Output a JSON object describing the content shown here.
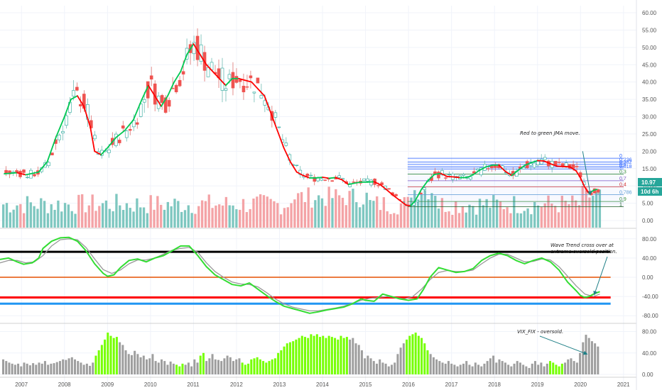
{
  "chart_data": [
    {
      "type": "candlestick",
      "panel": "price",
      "y_ticks": [
        "60.00",
        "55.00",
        "50.00",
        "45.00",
        "40.00",
        "35.00",
        "30.00",
        "25.00",
        "20.00",
        "15.00",
        "10.00",
        "5.00",
        "0.00"
      ],
      "ylim": [
        0,
        60
      ],
      "x_ticks": [
        "2007",
        "2008",
        "2009",
        "2010",
        "2011",
        "2012",
        "2013",
        "2014",
        "2015",
        "2016",
        "2017",
        "2018",
        "2019",
        "2020",
        "2021"
      ],
      "xlim": [
        2006.5,
        2021.3
      ],
      "last_price_label": "10.97",
      "countdown_label": "10d 6h",
      "annotation": "Red to green JMA move.",
      "fib_levels": [
        {
          "label": "0",
          "value": 18.0,
          "color": "#2962ff"
        },
        {
          "label": "0.236",
          "value": 16.9,
          "color": "#2962ff"
        },
        {
          "label": "0.382",
          "value": 16.2,
          "color": "#2962ff"
        },
        {
          "label": "0.5",
          "value": 15.5,
          "color": "#2962ff"
        },
        {
          "label": "0.618",
          "value": 14.9,
          "color": "#2962ff"
        },
        {
          "label": "0.3",
          "value": 13.4,
          "color": "#388e3c"
        },
        {
          "label": "0.7",
          "value": 11.5,
          "color": "#7e57c2"
        },
        {
          "label": "0.4",
          "value": 9.7,
          "color": "#d32f2f"
        },
        {
          "label": "0.786",
          "value": 7.5,
          "color": "#5c9bd6"
        },
        {
          "label": "0.9",
          "value": 5.5,
          "color": "#388e3c"
        },
        {
          "label": "1",
          "value": 4.0,
          "color": "#1b5e20"
        }
      ],
      "jma": [
        [
          2006.6,
          13.5
        ],
        [
          2006.9,
          13.8
        ],
        [
          2007.1,
          13.2
        ],
        [
          2007.4,
          14.0
        ],
        [
          2007.6,
          17.0
        ],
        [
          2007.8,
          24.0
        ],
        [
          2008.0,
          30.0
        ],
        [
          2008.15,
          35.0
        ],
        [
          2008.3,
          36.0
        ],
        [
          2008.45,
          33.0
        ],
        [
          2008.6,
          27.0
        ],
        [
          2008.7,
          20.0
        ],
        [
          2008.85,
          19.0
        ],
        [
          2009.0,
          21.0
        ],
        [
          2009.2,
          24.0
        ],
        [
          2009.4,
          26.0
        ],
        [
          2009.6,
          29.0
        ],
        [
          2009.8,
          35.0
        ],
        [
          2009.95,
          39.0
        ],
        [
          2010.1,
          36.0
        ],
        [
          2010.25,
          33.0
        ],
        [
          2010.4,
          36.0
        ],
        [
          2010.55,
          40.0
        ],
        [
          2010.7,
          43.0
        ],
        [
          2010.85,
          48.0
        ],
        [
          2011.0,
          51.0
        ],
        [
          2011.15,
          48.0
        ],
        [
          2011.3,
          45.0
        ],
        [
          2011.45,
          43.0
        ],
        [
          2011.6,
          41.0
        ],
        [
          2011.75,
          39.0
        ],
        [
          2011.9,
          41.0
        ],
        [
          2012.05,
          41.0
        ],
        [
          2012.2,
          40.5
        ],
        [
          2012.35,
          40.0
        ],
        [
          2012.5,
          38.0
        ],
        [
          2012.65,
          36.0
        ],
        [
          2012.8,
          31.0
        ],
        [
          2012.95,
          26.0
        ],
        [
          2013.1,
          21.0
        ],
        [
          2013.25,
          17.0
        ],
        [
          2013.4,
          14.0
        ],
        [
          2013.55,
          13.0
        ],
        [
          2013.7,
          12.3
        ],
        [
          2013.85,
          12.3
        ],
        [
          2014.0,
          12.5
        ],
        [
          2014.15,
          12.2
        ],
        [
          2014.3,
          12.4
        ],
        [
          2014.45,
          11.8
        ],
        [
          2014.6,
          10.4
        ],
        [
          2014.75,
          10.8
        ],
        [
          2014.9,
          11.1
        ],
        [
          2015.05,
          11.1
        ],
        [
          2015.2,
          11.2
        ],
        [
          2015.35,
          10.3
        ],
        [
          2015.5,
          8.8
        ],
        [
          2015.65,
          7.2
        ],
        [
          2015.8,
          5.8
        ],
        [
          2015.95,
          4.4
        ],
        [
          2016.05,
          4.3
        ],
        [
          2016.15,
          5.6
        ],
        [
          2016.3,
          9.0
        ],
        [
          2016.45,
          11.5
        ],
        [
          2016.6,
          13.3
        ],
        [
          2016.75,
          13.6
        ],
        [
          2016.9,
          12.7
        ],
        [
          2017.05,
          12.6
        ],
        [
          2017.2,
          12.4
        ],
        [
          2017.35,
          12.4
        ],
        [
          2017.5,
          13.2
        ],
        [
          2017.65,
          14.5
        ],
        [
          2017.8,
          15.5
        ],
        [
          2017.95,
          16.0
        ],
        [
          2018.1,
          16.0
        ],
        [
          2018.25,
          14.2
        ],
        [
          2018.4,
          13.0
        ],
        [
          2018.55,
          14.5
        ],
        [
          2018.7,
          15.9
        ],
        [
          2018.85,
          16.7
        ],
        [
          2019.0,
          17.3
        ],
        [
          2019.15,
          17.2
        ],
        [
          2019.3,
          16.4
        ],
        [
          2019.45,
          15.7
        ],
        [
          2019.6,
          15.6
        ],
        [
          2019.75,
          15.5
        ],
        [
          2019.9,
          14.3
        ],
        [
          2020.0,
          12.3
        ],
        [
          2020.1,
          9.6
        ],
        [
          2020.2,
          7.8
        ],
        [
          2020.3,
          8.7
        ],
        [
          2020.38,
          9.0
        ]
      ],
      "jma_colors": [
        "#ff0000",
        "#00c853"
      ],
      "annotation_arrow": {
        "from": [
          2020.05,
          20.0
        ],
        "to": [
          2020.23,
          7.5
        ]
      }
    },
    {
      "type": "line",
      "panel": "wave_trend",
      "y_ticks": [
        "80.00",
        "40.00",
        "0.00",
        "-40.00",
        "-80.00"
      ],
      "ylim": [
        -90,
        90
      ],
      "annotation": "Wave Trend cross over at extreme oversold position.",
      "levels": [
        {
          "value": 53,
          "color": "#000000"
        },
        {
          "value": 0,
          "color": "#e65100"
        },
        {
          "value": -42,
          "color": "#ff0000"
        },
        {
          "value": -55,
          "color": "#2196f3"
        }
      ],
      "series": [
        {
          "color": "#33dd33",
          "x": [
            2006.5,
            2006.7,
            2006.9,
            2007.05,
            2007.25,
            2007.4,
            2007.5,
            2007.7,
            2007.9,
            2008.1,
            2008.3,
            2008.5,
            2008.7,
            2008.9,
            2009.0,
            2009.15,
            2009.3,
            2009.5,
            2009.7,
            2009.9,
            2010.1,
            2010.3,
            2010.5,
            2010.7,
            2010.9,
            2011.0,
            2011.1,
            2011.3,
            2011.5,
            2011.7,
            2011.9,
            2012.1,
            2012.3,
            2012.5,
            2012.7,
            2012.9,
            2013.1,
            2013.3,
            2013.5,
            2013.7,
            2013.9,
            2014.1,
            2014.3,
            2014.5,
            2014.7,
            2014.9,
            2015.0,
            2015.2,
            2015.4,
            2015.6,
            2015.8,
            2016.0,
            2016.2,
            2016.35,
            2016.5,
            2016.7,
            2016.9,
            2017.1,
            2017.3,
            2017.5,
            2017.7,
            2017.9,
            2018.1,
            2018.3,
            2018.5,
            2018.7,
            2018.9,
            2019.1,
            2019.3,
            2019.5,
            2019.7,
            2019.9,
            2020.0,
            2020.1,
            2020.2,
            2020.3,
            2020.45
          ],
          "y": [
            37,
            40,
            32,
            27,
            30,
            40,
            60,
            75,
            82,
            83,
            75,
            55,
            28,
            8,
            2,
            5,
            20,
            35,
            38,
            32,
            40,
            45,
            55,
            65,
            65,
            55,
            45,
            22,
            5,
            -5,
            -15,
            -18,
            -12,
            -25,
            -38,
            -50,
            -60,
            -65,
            -70,
            -75,
            -72,
            -68,
            -65,
            -62,
            -55,
            -45,
            -48,
            -50,
            -35,
            -40,
            -45,
            -48,
            -45,
            -25,
            0,
            20,
            15,
            10,
            12,
            18,
            35,
            45,
            50,
            45,
            35,
            28,
            35,
            40,
            32,
            15,
            -10,
            -28,
            -38,
            -42,
            -40,
            -35,
            -30
          ]
        },
        {
          "color": "#999999",
          "x": [
            2006.5,
            2006.7,
            2006.9,
            2007.1,
            2007.3,
            2007.5,
            2007.7,
            2007.9,
            2008.1,
            2008.3,
            2008.5,
            2008.7,
            2008.9,
            2009.1,
            2009.3,
            2009.5,
            2009.7,
            2009.9,
            2010.1,
            2010.3,
            2010.5,
            2010.7,
            2010.9,
            2011.1,
            2011.3,
            2011.5,
            2011.7,
            2011.9,
            2012.1,
            2012.3,
            2012.5,
            2012.7,
            2012.9,
            2013.1,
            2013.3,
            2013.5,
            2013.7,
            2013.9,
            2014.1,
            2014.3,
            2014.5,
            2014.7,
            2014.9,
            2015.1,
            2015.3,
            2015.5,
            2015.7,
            2015.9,
            2016.1,
            2016.3,
            2016.5,
            2016.7,
            2016.9,
            2017.1,
            2017.3,
            2017.5,
            2017.7,
            2017.9,
            2018.1,
            2018.3,
            2018.5,
            2018.7,
            2018.9,
            2019.1,
            2019.3,
            2019.5,
            2019.7,
            2019.9,
            2020.1,
            2020.3,
            2020.45
          ],
          "y": [
            30,
            35,
            35,
            30,
            32,
            45,
            65,
            78,
            80,
            78,
            62,
            38,
            16,
            8,
            15,
            28,
            36,
            36,
            40,
            48,
            56,
            60,
            62,
            52,
            30,
            12,
            0,
            -10,
            -14,
            -15,
            -20,
            -32,
            -45,
            -55,
            -62,
            -66,
            -70,
            -70,
            -67,
            -64,
            -60,
            -54,
            -48,
            -44,
            -42,
            -40,
            -42,
            -45,
            -40,
            -25,
            -5,
            10,
            14,
            12,
            12,
            15,
            28,
            40,
            48,
            48,
            40,
            32,
            33,
            38,
            36,
            22,
            2,
            -18,
            -35,
            -40,
            -35
          ]
        }
      ]
    },
    {
      "type": "bar",
      "panel": "vix_fix",
      "y_ticks": [
        "80.00",
        "40.00",
        "0.00"
      ],
      "ylim": [
        0,
        90
      ],
      "annotation": "VIX_FIX - oversold.",
      "colors": {
        "normal": "#9e9e9e",
        "signal": "#76ff03"
      },
      "values": [
        28,
        25,
        22,
        20,
        18,
        20,
        15,
        22,
        20,
        17,
        21,
        18,
        22,
        20,
        25,
        18,
        20,
        21,
        23,
        25,
        28,
        27,
        30,
        32,
        28,
        25,
        22,
        18,
        20,
        16,
        22,
        35,
        45,
        55,
        65,
        78,
        72,
        68,
        70,
        60,
        55,
        45,
        38,
        36,
        44,
        38,
        32,
        35,
        28,
        30,
        38,
        25,
        22,
        28,
        25,
        18,
        24,
        20,
        18,
        15,
        20,
        18,
        22,
        15,
        28,
        22,
        35,
        40,
        25,
        30,
        38,
        28,
        27,
        25,
        30,
        35,
        32,
        25,
        28,
        30,
        22,
        18,
        20,
        28,
        30,
        32,
        28,
        25,
        22,
        25,
        28,
        30,
        40,
        45,
        52,
        58,
        60,
        62,
        65,
        68,
        72,
        70,
        68,
        75,
        72,
        75,
        70,
        72,
        68,
        72,
        70,
        68,
        65,
        72,
        68,
        70,
        65,
        68,
        58,
        55,
        45,
        30,
        35,
        30,
        25,
        20,
        28,
        22,
        20,
        15,
        18,
        22,
        38,
        50,
        58,
        65,
        72,
        75,
        78,
        72,
        68,
        58,
        45,
        38,
        32,
        28,
        25,
        22,
        20,
        25,
        20,
        18,
        15,
        18,
        20,
        25,
        18,
        15,
        22,
        18,
        15,
        20,
        25,
        30,
        35,
        22,
        28,
        25,
        22,
        18,
        15,
        20,
        25,
        22,
        18,
        15,
        12,
        20,
        25,
        18,
        22,
        15,
        20,
        25,
        22,
        18,
        15,
        20,
        22,
        28,
        30,
        25,
        22,
        40,
        60,
        74,
        68,
        62,
        58,
        52
      ],
      "signal_ranges": [
        [
          31,
          38
        ],
        [
          58,
          60
        ],
        [
          66,
          67
        ],
        [
          80,
          115
        ],
        [
          135,
          142
        ],
        [
          183,
          187
        ]
      ]
    }
  ],
  "colors": {
    "candle_up": "#26a69a",
    "candle_down": "#ef5350",
    "volume_up": "#7ec7c0",
    "volume_down": "#f4a3a6",
    "last_price_bg": "#26a69a",
    "countdown_bg": "#26a69a"
  }
}
